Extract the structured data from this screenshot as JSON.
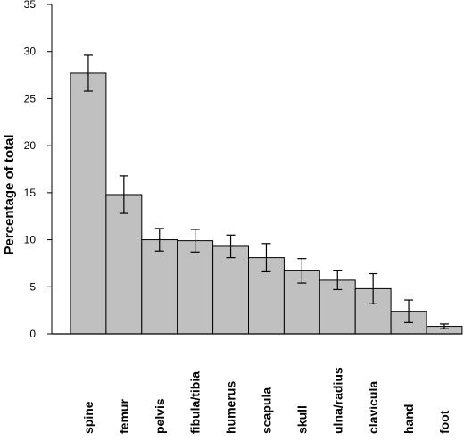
{
  "chart_data": {
    "type": "bar",
    "title": "",
    "xlabel": "",
    "ylabel": "Percentage of total",
    "ylim": [
      0,
      35
    ],
    "yticks": [
      0,
      5,
      10,
      15,
      20,
      25,
      30,
      35
    ],
    "grid": false,
    "legend": "none",
    "bar_color": "#c0c0c0",
    "categories": [
      "spine",
      "femur",
      "pelvis",
      "fibula/tibia",
      "humerus",
      "scapula",
      "skull",
      "ulna/radius",
      "clavicula",
      "hand",
      "foot"
    ],
    "values": [
      27.7,
      14.8,
      10.0,
      9.9,
      9.3,
      8.1,
      6.7,
      5.7,
      4.8,
      2.4,
      0.8
    ],
    "errors": [
      1.9,
      2.0,
      1.2,
      1.2,
      1.2,
      1.5,
      1.3,
      1.0,
      1.6,
      1.2,
      0.25
    ]
  }
}
